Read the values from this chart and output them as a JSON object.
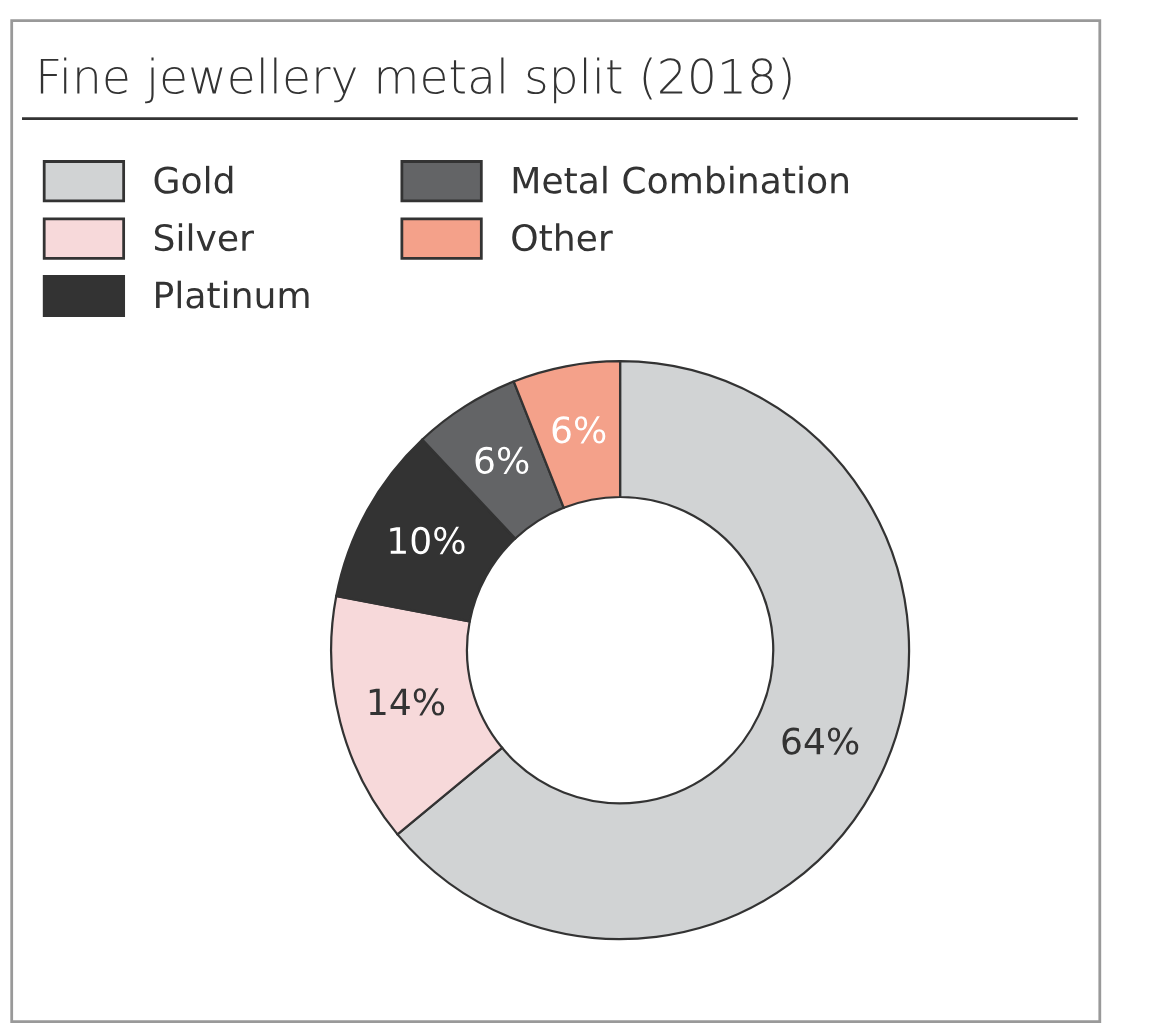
{
  "chart_data": {
    "type": "donut",
    "title": "Fine jewellery metal split (2018)",
    "categories": [
      "Gold",
      "Silver",
      "Platinum",
      "Metal Combination",
      "Other"
    ],
    "values": [
      64,
      14,
      10,
      6,
      6
    ],
    "colors": [
      "#d1d3d4",
      "#f7d9da",
      "#333333",
      "#636466",
      "#f4a18a"
    ],
    "value_labels": [
      "64%",
      "14%",
      "10%",
      "6%",
      "6%"
    ],
    "legend": "top left"
  }
}
